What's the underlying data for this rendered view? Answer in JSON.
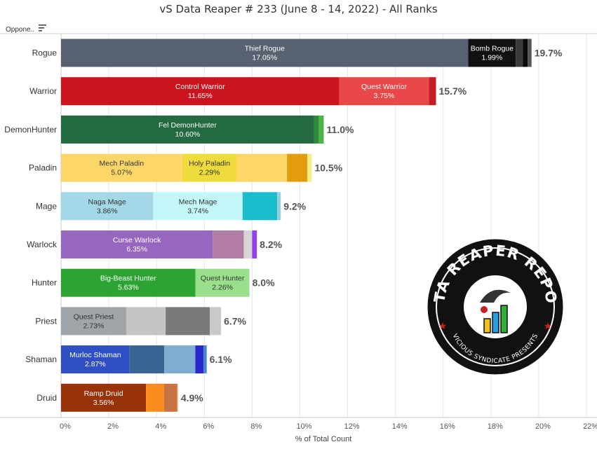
{
  "title": "vS Data Reaper # 233 (June 8 - 14, 2022) - All Ranks",
  "header": {
    "opponent_label": "Oppone..",
    "sort_icon": "sort-icon"
  },
  "logo": {
    "arc_text": "DATA REAPER REPORT",
    "bottom_text": "VICIOUS SYNDICATE PRESENTS"
  },
  "chart_data": {
    "type": "bar",
    "orientation": "horizontal",
    "stacked": true,
    "xlabel": "% of Total Count",
    "xlim": [
      0,
      22
    ],
    "ticks": [
      "0%",
      "2%",
      "4%",
      "6%",
      "8%",
      "10%",
      "12%",
      "14%",
      "16%",
      "18%",
      "20%",
      "22%"
    ],
    "grid": true,
    "categories": [
      "Rogue",
      "Warrior",
      "DemonHunter",
      "Paladin",
      "Mage",
      "Warlock",
      "Hunter",
      "Priest",
      "Shaman",
      "Druid"
    ],
    "totals": [
      "19.7%",
      "15.7%",
      "11.0%",
      "10.5%",
      "9.2%",
      "8.2%",
      "8.0%",
      "6.7%",
      "6.1%",
      "4.9%"
    ],
    "bars": [
      {
        "category": "Rogue",
        "segments": [
          {
            "name": "Thief Rogue",
            "value": 17.05,
            "label": "17.05%",
            "color": "#586170",
            "text_color": "#ffffff"
          },
          {
            "name": "Bomb Rogue",
            "value": 1.99,
            "label": "1.99%",
            "color": "#111111",
            "text_color": "#ffffff"
          },
          {
            "value": 0.3,
            "color": "#3b3b3b"
          },
          {
            "value": 0.2,
            "color": "#0a0a0a"
          },
          {
            "value": 0.16,
            "color": "#555555"
          }
        ]
      },
      {
        "category": "Warrior",
        "segments": [
          {
            "name": "Control Warrior",
            "value": 11.65,
            "label": "11.65%",
            "color": "#cc141e",
            "text_color": "#ffffff"
          },
          {
            "name": "Quest Warrior",
            "value": 3.75,
            "label": "3.75%",
            "color": "#e84848",
            "text_color": "#ffffff"
          },
          {
            "value": 0.3,
            "color": "#c21c24"
          }
        ]
      },
      {
        "category": "DemonHunter",
        "segments": [
          {
            "name": "Fel DemonHunter",
            "value": 10.6,
            "label": "10.60%",
            "color": "#246a40",
            "text_color": "#ffffff"
          },
          {
            "value": 0.2,
            "color": "#2e8b3a"
          },
          {
            "value": 0.2,
            "color": "#4ab54a"
          }
        ]
      },
      {
        "category": "Paladin",
        "segments": [
          {
            "name": "Mech Paladin",
            "value": 5.07,
            "label": "5.07%",
            "color": "#fdd66a",
            "text_color": "#333333"
          },
          {
            "name": "Holy Paladin",
            "value": 2.29,
            "label": "2.29%",
            "color": "#efdc3c",
            "text_color": "#333333"
          },
          {
            "value": 2.1,
            "color": "#fdd66a"
          },
          {
            "value": 0.85,
            "color": "#e39c0c"
          },
          {
            "value": 0.19,
            "color": "#faeb8c"
          }
        ]
      },
      {
        "category": "Mage",
        "segments": [
          {
            "name": "Naga Mage",
            "value": 3.86,
            "label": "3.86%",
            "color": "#a3d9e6",
            "text_color": "#333333"
          },
          {
            "name": "Mech Mage",
            "value": 3.74,
            "label": "3.74%",
            "color": "#c4f7f7",
            "text_color": "#333333"
          },
          {
            "value": 1.45,
            "color": "#1bbccc"
          },
          {
            "value": 0.15,
            "color": "#95d1dd"
          }
        ]
      },
      {
        "category": "Warlock",
        "segments": [
          {
            "name": "Curse Warlock",
            "value": 6.35,
            "label": "6.35%",
            "color": "#9766bf",
            "text_color": "#ffffff"
          },
          {
            "value": 1.3,
            "color": "#b17da4"
          },
          {
            "value": 0.35,
            "color": "#d6d6d6"
          },
          {
            "value": 0.2,
            "color": "#9540f0"
          }
        ]
      },
      {
        "category": "Hunter",
        "segments": [
          {
            "name": "Big-Beast Hunter",
            "value": 5.63,
            "label": "5.63%",
            "color": "#2da334",
            "text_color": "#ffffff"
          },
          {
            "name": "Quest Hunter",
            "value": 2.26,
            "label": "2.26%",
            "color": "#9adf8c",
            "text_color": "#333333"
          }
        ]
      },
      {
        "category": "Priest",
        "segments": [
          {
            "name": "Quest Priest",
            "value": 2.73,
            "label": "2.73%",
            "color": "#9fa5a8",
            "text_color": "#333333"
          },
          {
            "value": 1.65,
            "color": "#c4c4c4"
          },
          {
            "value": 1.85,
            "color": "#7a7a7a"
          },
          {
            "value": 0.47,
            "color": "#c9c9c9"
          }
        ]
      },
      {
        "category": "Shaman",
        "segments": [
          {
            "name": "Murloc Shaman",
            "value": 2.87,
            "label": "2.87%",
            "color": "#2f4fc4",
            "text_color": "#ffffff"
          },
          {
            "value": 1.45,
            "color": "#3a6491"
          },
          {
            "value": 1.3,
            "color": "#7eadd4"
          },
          {
            "value": 0.35,
            "color": "#2929ca"
          },
          {
            "value": 0.13,
            "color": "#4488cc"
          }
        ]
      },
      {
        "category": "Druid",
        "segments": [
          {
            "name": "Ramp Druid",
            "value": 3.56,
            "label": "3.56%",
            "color": "#973209",
            "text_color": "#ffffff"
          },
          {
            "value": 0.75,
            "color": "#fc8b1e"
          },
          {
            "value": 0.55,
            "color": "#c87344"
          },
          {
            "value": 0.04,
            "color": "#f2b885"
          }
        ]
      }
    ]
  }
}
